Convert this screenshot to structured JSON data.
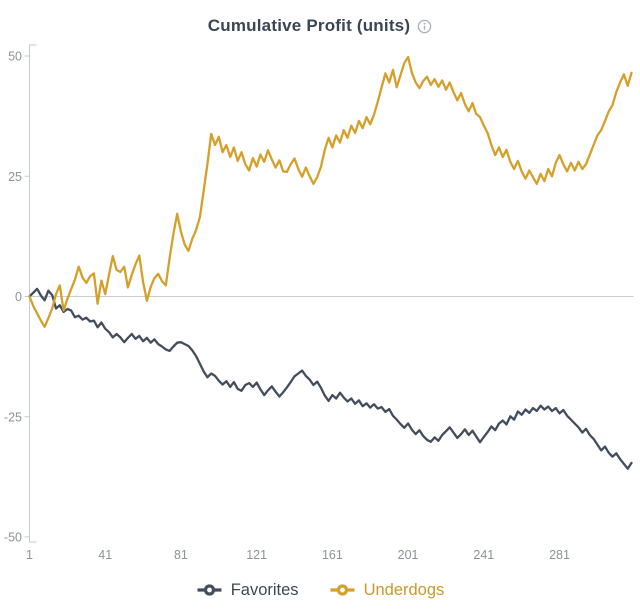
{
  "header": {
    "title": "Cumulative Profit (units)",
    "info_icon": "info-circle-icon"
  },
  "colors": {
    "background": "#FFFFFF",
    "title_text": "#3A4654",
    "info_icon": "#A9B0B7",
    "axis_line": "#C6CBD0",
    "zero_line": "#C8CDD2",
    "tick_text": "#8D9399",
    "favorites_line": "#424E5E",
    "favorites_label": "#3D4856",
    "underdogs_line": "#D4A02B",
    "underdogs_label": "#C9992B"
  },
  "chart_data": {
    "type": "line",
    "title": "Cumulative Profit (units)",
    "xlabel": "",
    "ylabel": "",
    "xlim": [
      1,
      320
    ],
    "ylim": [
      -50,
      50
    ],
    "x_ticks": [
      1,
      41,
      81,
      121,
      161,
      201,
      241,
      281
    ],
    "y_ticks": [
      50,
      25,
      0,
      -25,
      -50
    ],
    "grid": "zero-line-only",
    "legend_position": "bottom",
    "x_start": 1,
    "x_step": 2,
    "series": [
      {
        "name": "Favorites",
        "color": "#424E5E",
        "values": [
          0,
          0.8,
          1.6,
          0.2,
          -0.8,
          1.2,
          0.3,
          -2.5,
          -1.8,
          -3.2,
          -2.6,
          -2.9,
          -4.3,
          -4.0,
          -4.8,
          -4.4,
          -5.2,
          -5.0,
          -6.4,
          -5.4,
          -6.7,
          -7.4,
          -8.5,
          -7.8,
          -8.5,
          -9.5,
          -8.6,
          -7.8,
          -8.8,
          -8.2,
          -9.3,
          -8.6,
          -9.6,
          -8.9,
          -9.9,
          -10.4,
          -11.0,
          -11.3,
          -10.4,
          -9.6,
          -9.5,
          -9.9,
          -10.3,
          -11.2,
          -12.4,
          -14.0,
          -15.6,
          -16.8,
          -16.0,
          -16.5,
          -17.5,
          -18.3,
          -17.6,
          -18.8,
          -17.8,
          -19.2,
          -19.6,
          -18.4,
          -18.0,
          -18.8,
          -17.9,
          -19.3,
          -20.5,
          -19.5,
          -18.7,
          -19.8,
          -20.8,
          -19.9,
          -18.9,
          -17.8,
          -16.6,
          -16.0,
          -15.4,
          -16.5,
          -17.3,
          -18.4,
          -17.7,
          -19.0,
          -20.6,
          -21.7,
          -20.5,
          -21.2,
          -20.0,
          -21.0,
          -21.8,
          -21.2,
          -22.3,
          -21.6,
          -22.8,
          -22.2,
          -23.1,
          -22.4,
          -23.3,
          -23.0,
          -24.0,
          -23.4,
          -24.8,
          -25.6,
          -26.5,
          -27.3,
          -26.4,
          -27.7,
          -28.6,
          -27.8,
          -29.0,
          -29.8,
          -30.2,
          -29.3,
          -30.0,
          -28.8,
          -28.0,
          -27.2,
          -28.3,
          -29.4,
          -28.6,
          -27.6,
          -28.8,
          -27.9,
          -29.1,
          -30.3,
          -29.2,
          -28.2,
          -27.0,
          -27.8,
          -26.4,
          -25.8,
          -26.6,
          -24.9,
          -25.6,
          -23.9,
          -24.6,
          -23.5,
          -24.2,
          -23.2,
          -23.8,
          -22.7,
          -23.5,
          -22.9,
          -23.8,
          -23.2,
          -24.3,
          -23.6,
          -24.8,
          -25.6,
          -26.4,
          -27.2,
          -28.3,
          -27.5,
          -28.8,
          -29.6,
          -30.8,
          -32.0,
          -31.2,
          -32.5,
          -33.3,
          -32.6,
          -33.8,
          -34.8,
          -35.8,
          -34.6
        ]
      },
      {
        "name": "Underdogs",
        "color": "#D4A02B",
        "values": [
          0,
          -2.0,
          -3.5,
          -5.0,
          -6.3,
          -4.5,
          -2.5,
          0.5,
          2.3,
          -2.9,
          -0.5,
          1.5,
          3.5,
          6.2,
          4.0,
          2.8,
          4.2,
          4.8,
          -1.5,
          3.3,
          0.5,
          4.5,
          8.4,
          5.5,
          5.1,
          6.2,
          1.9,
          4.5,
          6.7,
          8.5,
          3.0,
          -0.9,
          2.0,
          3.8,
          4.7,
          3.2,
          2.3,
          8.0,
          13.0,
          17.2,
          13.5,
          10.8,
          9.5,
          12.0,
          13.8,
          16.5,
          22.0,
          27.5,
          33.8,
          31.5,
          33.2,
          30.0,
          31.5,
          29.0,
          31.0,
          28.2,
          30.0,
          27.5,
          26.2,
          28.8,
          27.0,
          29.5,
          28.0,
          30.4,
          28.5,
          26.8,
          28.3,
          26.0,
          25.9,
          27.5,
          28.7,
          26.5,
          24.9,
          26.8,
          25.0,
          23.4,
          24.8,
          27.0,
          30.5,
          33.0,
          31.0,
          33.5,
          32.0,
          34.6,
          33.0,
          35.5,
          34.0,
          36.5,
          35.0,
          37.3,
          35.8,
          37.8,
          40.5,
          43.5,
          46.4,
          44.5,
          47.1,
          43.5,
          46.0,
          48.5,
          49.8,
          46.5,
          44.5,
          43.3,
          44.8,
          45.7,
          44.0,
          45.2,
          43.6,
          44.9,
          43.0,
          44.5,
          42.5,
          40.8,
          42.3,
          40.0,
          38.5,
          40.2,
          38.0,
          37.3,
          35.5,
          34.0,
          31.5,
          29.4,
          31.0,
          29.0,
          30.5,
          28.0,
          26.5,
          28.2,
          26.0,
          24.5,
          26.2,
          24.8,
          23.4,
          25.5,
          24.0,
          26.5,
          25.0,
          27.8,
          29.4,
          27.5,
          26.0,
          27.8,
          26.2,
          28.0,
          26.5,
          27.5,
          29.5,
          31.5,
          33.5,
          34.6,
          36.5,
          38.5,
          39.8,
          42.5,
          44.5,
          46.2,
          43.8,
          46.5
        ]
      }
    ]
  },
  "legend": {
    "items": [
      {
        "label": "Favorites",
        "color": "#3D4856"
      },
      {
        "label": "Underdogs",
        "color": "#C9992B"
      }
    ]
  }
}
